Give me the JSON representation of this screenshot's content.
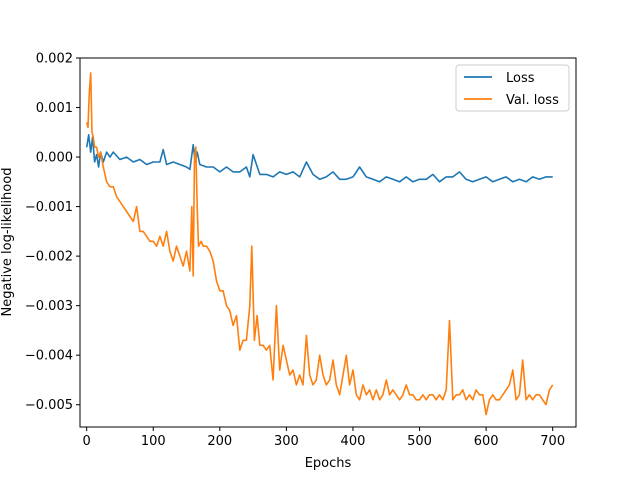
{
  "chart_data": {
    "type": "line",
    "title": "",
    "xlabel": "Epochs",
    "ylabel": "Negative log-likelihood",
    "xlim": [
      -10,
      735
    ],
    "ylim": [
      -0.00545,
      0.002
    ],
    "xticks": [
      0,
      100,
      200,
      300,
      400,
      500,
      600,
      700
    ],
    "yticks": [
      0.002,
      0.001,
      0.0,
      -0.001,
      -0.002,
      -0.003,
      -0.004,
      -0.005
    ],
    "ytick_labels": [
      "0.002",
      "0.001",
      "0.000",
      "−0.001",
      "−0.002",
      "−0.003",
      "−0.004",
      "−0.005"
    ],
    "xtick_labels": [
      "0",
      "100",
      "200",
      "300",
      "400",
      "500",
      "600",
      "700"
    ],
    "grid": false,
    "legend_position": "top-right",
    "series": [
      {
        "name": "Loss",
        "color": "#1f77b4",
        "x": [
          0,
          3,
          6,
          9,
          12,
          15,
          18,
          21,
          25,
          30,
          35,
          40,
          50,
          60,
          70,
          80,
          90,
          100,
          110,
          115,
          120,
          130,
          140,
          150,
          155,
          160,
          163,
          166,
          170,
          180,
          190,
          200,
          210,
          220,
          230,
          240,
          245,
          250,
          260,
          270,
          280,
          290,
          300,
          310,
          320,
          330,
          340,
          350,
          360,
          370,
          380,
          390,
          400,
          410,
          420,
          430,
          440,
          450,
          460,
          470,
          480,
          490,
          500,
          510,
          520,
          530,
          540,
          550,
          560,
          570,
          580,
          590,
          600,
          610,
          620,
          630,
          640,
          650,
          660,
          670,
          680,
          690,
          700
        ],
        "values": [
          0.0002,
          0.00045,
          0.0001,
          0.0004,
          -0.0001,
          5e-05,
          -0.0002,
          0.0001,
          -0.0001,
          0.0001,
          0.0,
          0.0001,
          -5e-05,
          0.0,
          -0.0001,
          -5e-05,
          -0.00015,
          -0.0001,
          -0.0001,
          0.00015,
          -0.00015,
          -0.0001,
          -0.00015,
          -0.0002,
          -0.00025,
          0.00025,
          -0.0001,
          0.0001,
          -0.00015,
          -0.0002,
          -0.0002,
          -0.0003,
          -0.0002,
          -0.0003,
          -0.0003,
          -0.0002,
          -0.0004,
          5e-05,
          -0.00035,
          -0.00035,
          -0.0004,
          -0.0003,
          -0.00035,
          -0.0003,
          -0.0004,
          -0.0001,
          -0.00035,
          -0.00045,
          -0.0004,
          -0.0003,
          -0.00045,
          -0.00045,
          -0.0004,
          -0.0002,
          -0.0004,
          -0.00045,
          -0.0005,
          -0.0004,
          -0.00045,
          -0.0005,
          -0.0004,
          -0.0005,
          -0.00045,
          -0.00045,
          -0.00035,
          -0.0005,
          -0.0004,
          -0.0004,
          -0.0003,
          -0.00045,
          -0.0005,
          -0.00045,
          -0.0004,
          -0.0005,
          -0.00045,
          -0.0004,
          -0.0005,
          -0.00045,
          -0.0005,
          -0.0004,
          -0.00045,
          -0.0004,
          -0.0004
        ]
      },
      {
        "name": "Val. loss",
        "color": "#ff7f0e",
        "x": [
          0,
          2,
          4,
          6,
          8,
          10,
          12,
          15,
          18,
          21,
          25,
          30,
          35,
          40,
          45,
          50,
          55,
          60,
          65,
          70,
          75,
          80,
          85,
          90,
          95,
          100,
          105,
          110,
          115,
          120,
          125,
          130,
          135,
          140,
          145,
          150,
          155,
          158,
          160,
          162,
          164,
          166,
          168,
          172,
          175,
          180,
          185,
          190,
          195,
          200,
          205,
          210,
          215,
          220,
          225,
          230,
          235,
          240,
          245,
          248,
          252,
          256,
          260,
          265,
          270,
          275,
          280,
          285,
          290,
          295,
          300,
          305,
          310,
          315,
          320,
          325,
          330,
          335,
          340,
          345,
          350,
          355,
          360,
          365,
          370,
          375,
          380,
          385,
          390,
          395,
          400,
          405,
          410,
          415,
          420,
          425,
          430,
          435,
          440,
          445,
          450,
          455,
          460,
          465,
          470,
          475,
          480,
          485,
          490,
          495,
          500,
          505,
          510,
          515,
          520,
          525,
          530,
          535,
          540,
          545,
          550,
          555,
          560,
          565,
          570,
          575,
          580,
          585,
          590,
          595,
          600,
          605,
          610,
          615,
          620,
          625,
          630,
          635,
          640,
          645,
          650,
          655,
          660,
          665,
          670,
          675,
          680,
          685,
          690,
          695,
          700
        ],
        "values": [
          0.0007,
          0.0006,
          0.0013,
          0.0017,
          0.0005,
          0.0004,
          0.0002,
          0.0002,
          0.0,
          0.0001,
          -0.0002,
          -0.0005,
          -0.0006,
          -0.0006,
          -0.0008,
          -0.0009,
          -0.001,
          -0.0011,
          -0.0012,
          -0.0013,
          -0.001,
          -0.0015,
          -0.0015,
          -0.0016,
          -0.0017,
          -0.0017,
          -0.0018,
          -0.0016,
          -0.0018,
          -0.0015,
          -0.0019,
          -0.0021,
          -0.0018,
          -0.002,
          -0.0022,
          -0.0019,
          -0.0023,
          -0.001,
          -0.0024,
          0.0,
          0.0002,
          -0.001,
          -0.0018,
          -0.0017,
          -0.0018,
          -0.0018,
          -0.0019,
          -0.0021,
          -0.0025,
          -0.0027,
          -0.0027,
          -0.003,
          -0.0031,
          -0.0034,
          -0.0032,
          -0.0039,
          -0.0037,
          -0.0037,
          -0.003,
          -0.0018,
          -0.0037,
          -0.0032,
          -0.0038,
          -0.0038,
          -0.0039,
          -0.0038,
          -0.0045,
          -0.003,
          -0.0043,
          -0.0038,
          -0.0041,
          -0.0044,
          -0.0043,
          -0.0046,
          -0.0044,
          -0.0046,
          -0.0036,
          -0.0044,
          -0.0046,
          -0.0045,
          -0.004,
          -0.0044,
          -0.0046,
          -0.0045,
          -0.0041,
          -0.0046,
          -0.0048,
          -0.0044,
          -0.004,
          -0.0046,
          -0.0043,
          -0.0048,
          -0.0049,
          -0.0046,
          -0.0048,
          -0.0047,
          -0.0049,
          -0.0047,
          -0.0049,
          -0.0048,
          -0.0045,
          -0.0048,
          -0.0047,
          -0.0048,
          -0.0049,
          -0.0048,
          -0.0046,
          -0.0048,
          -0.0048,
          -0.0049,
          -0.0049,
          -0.0048,
          -0.0049,
          -0.0048,
          -0.0048,
          -0.0049,
          -0.0048,
          -0.0049,
          -0.0047,
          -0.0033,
          -0.0049,
          -0.0048,
          -0.0048,
          -0.0047,
          -0.0049,
          -0.0048,
          -0.0049,
          -0.0047,
          -0.0048,
          -0.0048,
          -0.0052,
          -0.0049,
          -0.0048,
          -0.0049,
          -0.0049,
          -0.0048,
          -0.0047,
          -0.0046,
          -0.0043,
          -0.0049,
          -0.0048,
          -0.0041,
          -0.0049,
          -0.0048,
          -0.0049,
          -0.0048,
          -0.0048,
          -0.0049,
          -0.005,
          -0.0047,
          -0.0046
        ]
      }
    ]
  }
}
